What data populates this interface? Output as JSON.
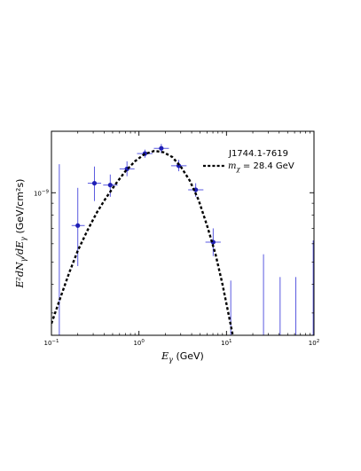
{
  "chart_data": {
    "type": "scatter",
    "x_scale": "log",
    "y_scale": "log",
    "xlim": [
      0.1,
      100
    ],
    "ylim": [
      0.24,
      1.85
    ],
    "xlabel_symbol": "E",
    "xlabel_sub": "γ",
    "xlabel_unit": "(GeV)",
    "ylabel_math": "E²dN",
    "ylabel_sub": "γ",
    "ylabel_mid": "/dE",
    "ylabel_sub2": "γ",
    "ylabel_unit": "(GeV/cm²s)",
    "x_ticks": [
      {
        "value": 0.1,
        "base": "10",
        "exp": "−1"
      },
      {
        "value": 1,
        "base": "10",
        "exp": "0"
      },
      {
        "value": 10,
        "base": "10",
        "exp": "1"
      },
      {
        "value": 100,
        "base": "10",
        "exp": "2"
      }
    ],
    "y_ticks": [
      {
        "value": 1,
        "base": "10",
        "exp": "−9"
      }
    ],
    "annotation": "J1744.1-7619",
    "legend": {
      "placement": "top-right",
      "symbol": "m",
      "symbol_sub": "χ",
      "text": " = 28.4 GeV"
    },
    "points": [
      {
        "x": 0.2,
        "y": 0.72,
        "xlo": 0.17,
        "xhi": 0.24,
        "ylo": 0.48,
        "yhi": 1.05
      },
      {
        "x": 0.31,
        "y": 1.1,
        "xlo": 0.26,
        "xhi": 0.37,
        "ylo": 0.92,
        "yhi": 1.3
      },
      {
        "x": 0.47,
        "y": 1.08,
        "xlo": 0.39,
        "xhi": 0.57,
        "ylo": 0.96,
        "yhi": 1.2
      },
      {
        "x": 0.73,
        "y": 1.27,
        "xlo": 0.6,
        "xhi": 0.89,
        "ylo": 1.18,
        "yhi": 1.37
      },
      {
        "x": 1.17,
        "y": 1.48,
        "xlo": 0.95,
        "xhi": 1.43,
        "ylo": 1.42,
        "yhi": 1.54
      },
      {
        "x": 1.8,
        "y": 1.56,
        "xlo": 1.48,
        "xhi": 2.2,
        "ylo": 1.49,
        "yhi": 1.63
      },
      {
        "x": 2.85,
        "y": 1.31,
        "xlo": 2.33,
        "xhi": 3.5,
        "ylo": 1.24,
        "yhi": 1.39
      },
      {
        "x": 4.45,
        "y": 1.03,
        "xlo": 3.65,
        "xhi": 5.45,
        "ylo": 0.96,
        "yhi": 1.1
      },
      {
        "x": 7.05,
        "y": 0.61,
        "xlo": 5.75,
        "xhi": 8.6,
        "ylo": 0.53,
        "yhi": 0.7
      }
    ],
    "upper_limits": [
      {
        "x": 0.123,
        "y": 1.33
      },
      {
        "x": 11.2,
        "y": 0.415
      },
      {
        "x": 26.5,
        "y": 0.54
      },
      {
        "x": 41,
        "y": 0.43
      },
      {
        "x": 62,
        "y": 0.43
      },
      {
        "x": 98,
        "y": 0.62
      }
    ],
    "model_curve": [
      [
        0.1,
        0.27
      ],
      [
        0.13,
        0.36
      ],
      [
        0.16,
        0.45
      ],
      [
        0.2,
        0.56
      ],
      [
        0.26,
        0.69
      ],
      [
        0.33,
        0.82
      ],
      [
        0.42,
        0.95
      ],
      [
        0.55,
        1.1
      ],
      [
        0.7,
        1.24
      ],
      [
        0.9,
        1.37
      ],
      [
        1.15,
        1.47
      ],
      [
        1.5,
        1.52
      ],
      [
        1.9,
        1.5
      ],
      [
        2.4,
        1.43
      ],
      [
        3.0,
        1.3
      ],
      [
        3.8,
        1.13
      ],
      [
        4.8,
        0.93
      ],
      [
        6.0,
        0.72
      ],
      [
        7.5,
        0.54
      ],
      [
        9.0,
        0.4
      ],
      [
        10.5,
        0.3
      ],
      [
        11.8,
        0.24
      ]
    ],
    "colors": {
      "points": "#1f1fb4",
      "errorbars": "#5a5ae0",
      "model": "#000000",
      "axes": "#000000"
    },
    "grid": false
  }
}
